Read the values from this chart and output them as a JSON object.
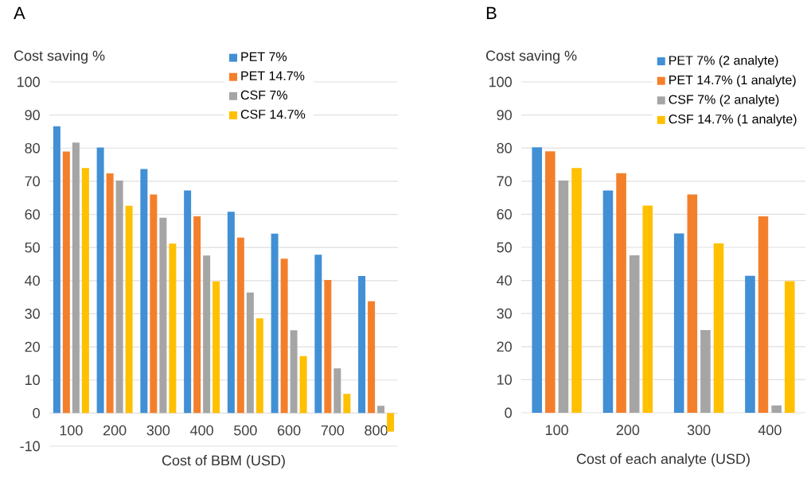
{
  "chart_data": [
    {
      "type": "bar",
      "title": "A",
      "xlabel": "Cost of BBM (USD)",
      "ylabel": "Cost saving %",
      "categories": [
        "100",
        "200",
        "300",
        "400",
        "500",
        "600",
        "700",
        "800"
      ],
      "series": [
        {
          "name": "PET 7%",
          "color": "#418fd5",
          "values": [
            86.6,
            80.2,
            73.7,
            67.2,
            60.8,
            54.2,
            47.8,
            41.4
          ]
        },
        {
          "name": "PET 14.7%",
          "color": "#f47f2b",
          "values": [
            79.0,
            72.4,
            66.0,
            59.4,
            53.0,
            46.6,
            40.2,
            33.8
          ]
        },
        {
          "name": "CSF 7%",
          "color": "#a5a5a5",
          "values": [
            81.7,
            70.2,
            59.0,
            47.6,
            36.4,
            25.0,
            13.5,
            2.2
          ]
        },
        {
          "name": "CSF 14.7%",
          "color": "#ffc000",
          "values": [
            74.0,
            62.6,
            51.2,
            39.8,
            28.6,
            17.2,
            5.8,
            -5.6
          ]
        }
      ],
      "ylim": [
        -10,
        100
      ],
      "yticks": [
        -10,
        0,
        10,
        20,
        30,
        40,
        50,
        60,
        70,
        80,
        90,
        100
      ],
      "grid": "y",
      "legend": "top"
    },
    {
      "type": "bar",
      "title": "B",
      "xlabel": "Cost of each analyte (USD)",
      "ylabel": "Cost saving %",
      "categories": [
        "100",
        "200",
        "300",
        "400"
      ],
      "series": [
        {
          "name": "PET 7% (2 analyte)",
          "color": "#418fd5",
          "values": [
            80.2,
            67.2,
            54.2,
            41.4
          ]
        },
        {
          "name": "PET 14.7% (1 analyte)",
          "color": "#f47f2b",
          "values": [
            79.0,
            72.4,
            66.0,
            59.4
          ]
        },
        {
          "name": "CSF 7% (2 analyte)",
          "color": "#a5a5a5",
          "values": [
            70.2,
            47.6,
            25.0,
            2.2
          ]
        },
        {
          "name": "CSF 14.7% (1 analyte)",
          "color": "#ffc000",
          "values": [
            74.0,
            62.6,
            51.2,
            39.8
          ]
        }
      ],
      "ylim": [
        0,
        100
      ],
      "yticks": [
        0,
        10,
        20,
        30,
        40,
        50,
        60,
        70,
        80,
        90,
        100
      ],
      "grid": "y",
      "legend": "top right"
    }
  ]
}
